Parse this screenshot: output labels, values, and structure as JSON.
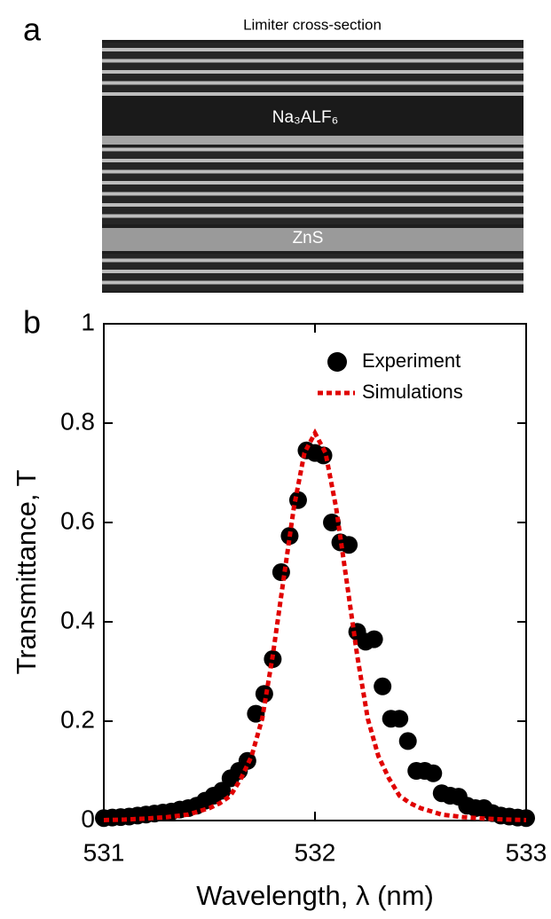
{
  "panel_a": {
    "label": "a",
    "title": "Limiter cross-section",
    "annotations": [
      "Na₃ALF₆",
      "ZnS"
    ]
  },
  "chart_data": {
    "type": "scatter",
    "panel_label": "b",
    "xlabel": "Wavelength, λ (nm)",
    "ylabel": "Transmittance, T",
    "xlim": [
      531,
      533
    ],
    "xticks": [
      531,
      532,
      533
    ],
    "ylim": [
      0,
      1
    ],
    "yticks": [
      0,
      0.2,
      0.4,
      0.6,
      0.8,
      1
    ],
    "legend": "upper right",
    "series": [
      {
        "name": "Experiment",
        "kind": "scatter",
        "color": "#000000",
        "x": [
          531,
          531.04,
          531.08,
          531.12,
          531.16,
          531.2,
          531.24,
          531.28,
          531.32,
          531.36,
          531.4,
          531.44,
          531.48,
          531.52,
          531.56,
          531.6,
          531.64,
          531.68,
          531.72,
          531.76,
          531.8,
          531.84,
          531.88,
          531.92,
          531.96,
          532,
          532.04,
          532.08,
          532.12,
          532.16,
          532.2,
          532.24,
          532.28,
          532.32,
          532.36,
          532.4,
          532.44,
          532.48,
          532.52,
          532.56,
          532.6,
          532.64,
          532.68,
          532.72,
          532.76,
          532.8,
          532.84,
          532.88,
          532.92,
          532.96,
          533
        ],
        "values": [
          0.005,
          0.006,
          0.007,
          0.008,
          0.01,
          0.012,
          0.014,
          0.016,
          0.018,
          0.022,
          0.025,
          0.03,
          0.04,
          0.05,
          0.06,
          0.085,
          0.1,
          0.12,
          0.215,
          0.255,
          0.325,
          0.5,
          0.573,
          0.645,
          0.745,
          0.74,
          0.735,
          0.6,
          0.56,
          0.555,
          0.38,
          0.36,
          0.365,
          0.27,
          0.205,
          0.205,
          0.16,
          0.1,
          0.1,
          0.095,
          0.055,
          0.05,
          0.048,
          0.03,
          0.025,
          0.025,
          0.015,
          0.01,
          0.008,
          0.006,
          0.005
        ]
      },
      {
        "name": "Simulations",
        "kind": "line",
        "style": "dashed",
        "color": "#e00000",
        "x": [
          531,
          531.1,
          531.2,
          531.3,
          531.4,
          531.5,
          531.55,
          531.6,
          531.65,
          531.7,
          531.75,
          531.8,
          531.85,
          531.9,
          531.95,
          532,
          532.05,
          532.1,
          532.15,
          532.2,
          532.25,
          532.3,
          532.35,
          532.4,
          532.45,
          532.5,
          532.6,
          532.7,
          532.8,
          532.9,
          533
        ],
        "values": [
          0.001,
          0.002,
          0.004,
          0.007,
          0.012,
          0.025,
          0.035,
          0.05,
          0.085,
          0.13,
          0.205,
          0.332,
          0.482,
          0.63,
          0.74,
          0.78,
          0.74,
          0.63,
          0.482,
          0.332,
          0.205,
          0.13,
          0.085,
          0.05,
          0.035,
          0.025,
          0.012,
          0.007,
          0.004,
          0.002,
          0.001
        ]
      }
    ]
  }
}
